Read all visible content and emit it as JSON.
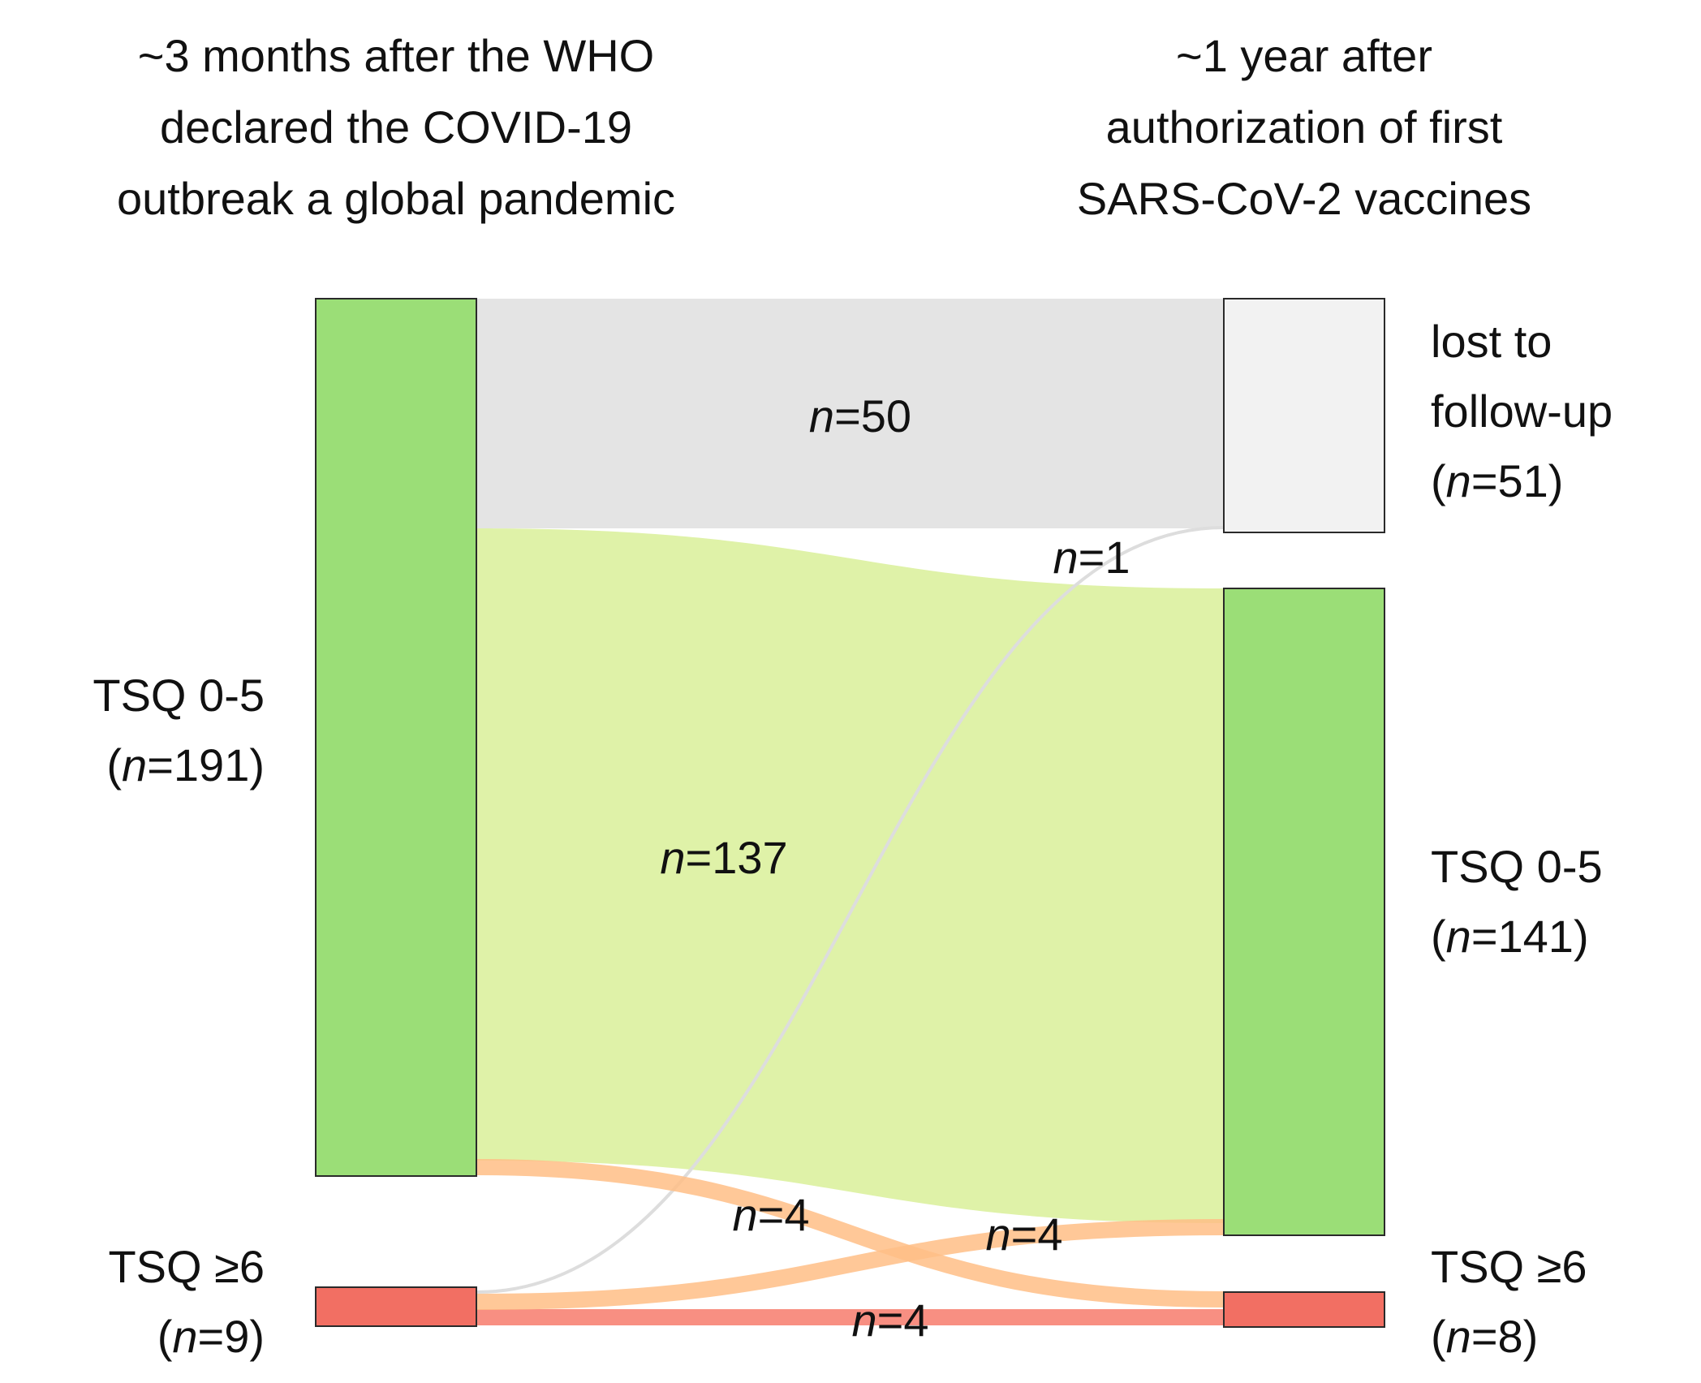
{
  "headers": {
    "left": [
      "~3 months after the WHO",
      "declared the COVID-19",
      "outbreak a global pandemic"
    ],
    "right": [
      "~1 year after",
      "authorization of first",
      "SARS-CoV-2 vaccines"
    ]
  },
  "nodes": {
    "left_tsq_low": {
      "line1": "TSQ 0-5",
      "n_open": "(",
      "n_var": "n",
      "n_value": "=191)",
      "count": 191,
      "color": "#9bde77"
    },
    "left_tsq_high": {
      "line1": "TSQ ≥6",
      "n_open": "(",
      "n_var": "n",
      "n_value": "=9)",
      "count": 9,
      "color": "#f26f63"
    },
    "right_lost": {
      "line1": "lost to",
      "line2": "follow-up",
      "n_open": "(",
      "n_var": "n",
      "n_value": "=51)",
      "count": 51,
      "color": "#f2f2f2"
    },
    "right_tsq_low": {
      "line1": "TSQ 0-5",
      "n_open": "(",
      "n_var": "n",
      "n_value": "=141)",
      "count": 141,
      "color": "#9bde77"
    },
    "right_tsq_high": {
      "line1": "TSQ ≥6",
      "n_open": "(",
      "n_var": "n",
      "n_value": "=8)",
      "count": 8,
      "color": "#f26f63"
    }
  },
  "flows": {
    "low_to_lost": {
      "var": "n",
      "value": "=50",
      "count": 50,
      "color": "#e4e4e4"
    },
    "low_to_low": {
      "var": "n",
      "value": "=137",
      "count": 137,
      "color": "#dff2a8"
    },
    "low_to_high": {
      "var": "n",
      "value": "=4",
      "count": 4,
      "color": "#ffbe86"
    },
    "high_to_lost": {
      "var": "n",
      "value": "=1",
      "count": 1,
      "color": "#dddddd"
    },
    "high_to_low": {
      "var": "n",
      "value": "=4",
      "count": 4,
      "color": "#ffbe86"
    },
    "high_to_high": {
      "var": "n",
      "value": "=4",
      "count": 4,
      "color": "#f8897b"
    }
  }
}
